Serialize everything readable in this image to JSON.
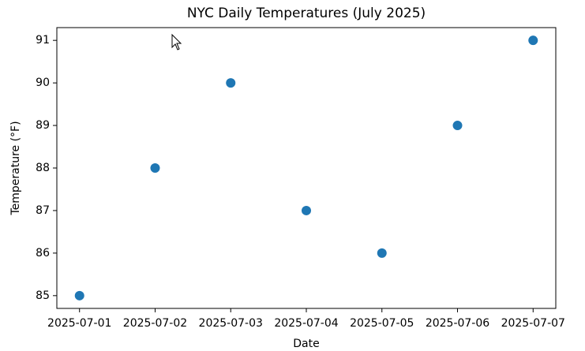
{
  "chart_data": {
    "type": "scatter",
    "title": "NYC Daily Temperatures (July 2025)",
    "x_label": "Date",
    "y_label": "Temperature (°F)",
    "x": [
      "2025-07-01",
      "2025-07-02",
      "2025-07-03",
      "2025-07-04",
      "2025-07-05",
      "2025-07-06",
      "2025-07-07"
    ],
    "values": [
      85,
      88,
      90,
      87,
      86,
      89,
      91
    ],
    "color": "#1f77b4",
    "ylim": [
      84.7,
      91.3
    ],
    "yticks": [
      85,
      86,
      87,
      88,
      89,
      90,
      91
    ],
    "grid": false
  }
}
